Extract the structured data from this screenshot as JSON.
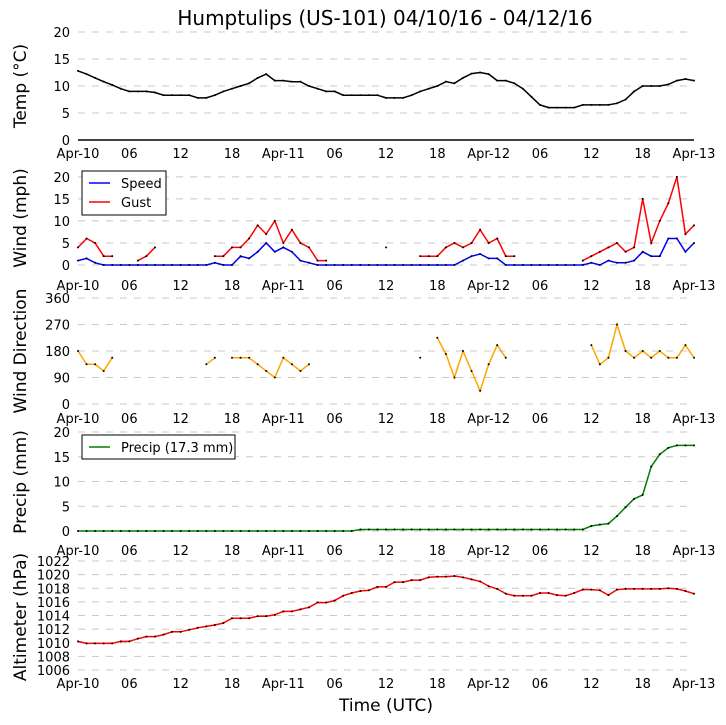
{
  "title": "Humptulips (US-101) 04/10/16 - 04/12/16",
  "xlabel": "Time (UTC)",
  "x_tick_labels": [
    "Apr-10",
    "06",
    "12",
    "18",
    "Apr-11",
    "06",
    "12",
    "18",
    "Apr-12",
    "06",
    "12",
    "18",
    "Apr-13"
  ],
  "x_range": [
    "2016-04-10T00:00",
    "2016-04-13T00:00"
  ],
  "chart_data": [
    {
      "type": "line",
      "ylabel": "Temp ($^\\circ$C)",
      "ylabel_display": "Temp (°C)",
      "ylim": [
        0,
        20
      ],
      "yticks": [
        "0",
        "5",
        "10",
        "15",
        "20"
      ],
      "grid": true,
      "series": [
        {
          "color": "#000000",
          "values": [
            12.8,
            12.2,
            11.5,
            10.8,
            10.2,
            9.5,
            9,
            9,
            9,
            8.8,
            8.3,
            8.3,
            8.3,
            8.3,
            7.8,
            7.8,
            8.3,
            9,
            9.5,
            10,
            10.5,
            11.5,
            12.2,
            11,
            11,
            10.8,
            10.8,
            10,
            9.5,
            9,
            9,
            8.3,
            8.3,
            8.3,
            8.3,
            8.3,
            7.8,
            7.8,
            7.8,
            8.3,
            9,
            9.5,
            10,
            10.8,
            10.5,
            11.5,
            12.3,
            12.5,
            12.2,
            11,
            11,
            10.5,
            9.5,
            8,
            6.5,
            6,
            6,
            6,
            6,
            6.5,
            6.5,
            6.5,
            6.5,
            6.8,
            7.5,
            9,
            10,
            10,
            10,
            10.3,
            11,
            11.3,
            11
          ]
        }
      ]
    },
    {
      "type": "line",
      "ylabel": "Wind (mph)",
      "ylim": [
        0,
        22
      ],
      "yticks": [
        "0",
        "5",
        "10",
        "15",
        "20"
      ],
      "grid": true,
      "legend": "top-left",
      "series": [
        {
          "name": "Speed",
          "color": "#0000ff",
          "values": [
            1,
            1.5,
            0.5,
            0,
            0,
            0,
            0,
            0,
            0,
            0,
            0,
            0,
            0,
            0,
            0,
            0,
            0.5,
            0,
            0,
            2,
            1.5,
            3,
            5,
            3,
            4,
            3,
            1,
            0.5,
            0,
            0,
            0,
            0,
            0,
            0,
            0,
            0,
            0,
            0,
            0,
            0,
            0,
            0,
            0,
            0,
            0,
            1,
            2,
            2.5,
            1.5,
            1.5,
            0,
            0,
            0,
            0,
            0,
            0,
            0,
            0,
            0,
            0,
            0.5,
            0,
            1,
            0.5,
            0.5,
            1,
            3,
            2,
            2,
            6,
            6,
            3,
            5
          ]
        },
        {
          "name": "Gust",
          "color": "#ff0000",
          "values": [
            4,
            6,
            5,
            2,
            2,
            null,
            null,
            1,
            2,
            4,
            null,
            null,
            null,
            null,
            null,
            null,
            2,
            2,
            4,
            4,
            6,
            9,
            7,
            10,
            5,
            8,
            5,
            4,
            1,
            1,
            null,
            null,
            null,
            null,
            null,
            null,
            4,
            null,
            null,
            null,
            2,
            2,
            2,
            4,
            5,
            4,
            5,
            8,
            5,
            6,
            2,
            2,
            null,
            null,
            null,
            null,
            null,
            null,
            null,
            1,
            2,
            3,
            4,
            5,
            3,
            4,
            15,
            5,
            10,
            14,
            20,
            7,
            9
          ]
        }
      ]
    },
    {
      "type": "line",
      "ylabel": "Wind Direction",
      "ylim": [
        0,
        360
      ],
      "yticks": [
        "0",
        "90",
        "180",
        "270",
        "360"
      ],
      "grid": true,
      "series": [
        {
          "color": "#ffa500",
          "values": [
            180,
            135,
            135,
            112,
            157,
            null,
            null,
            null,
            null,
            null,
            null,
            null,
            null,
            null,
            null,
            135,
            157,
            null,
            157,
            157,
            157,
            135,
            112,
            90,
            157,
            135,
            112,
            135,
            null,
            null,
            null,
            null,
            null,
            null,
            null,
            null,
            null,
            null,
            null,
            null,
            157,
            null,
            225,
            170,
            90,
            180,
            112,
            45,
            135,
            200,
            157,
            null,
            null,
            null,
            null,
            null,
            null,
            null,
            null,
            null,
            200,
            135,
            157,
            270,
            180,
            157,
            180,
            157,
            180,
            157,
            157,
            200,
            157
          ]
        }
      ]
    },
    {
      "type": "line",
      "ylabel": "Precip (mm)",
      "ylim": [
        0,
        20
      ],
      "yticks": [
        "0",
        "5",
        "10",
        "15",
        "20"
      ],
      "grid": true,
      "legend": "top-left",
      "series": [
        {
          "name": "Precip (17.3 mm)",
          "color": "#008000",
          "values": [
            0,
            0,
            0,
            0,
            0,
            0,
            0,
            0,
            0,
            0,
            0,
            0,
            0,
            0,
            0,
            0,
            0,
            0,
            0,
            0,
            0,
            0,
            0,
            0,
            0,
            0,
            0,
            0,
            0,
            0,
            0,
            0,
            0,
            0.3,
            0.3,
            0.3,
            0.3,
            0.3,
            0.3,
            0.3,
            0.3,
            0.3,
            0.3,
            0.3,
            0.3,
            0.3,
            0.3,
            0.3,
            0.3,
            0.3,
            0.3,
            0.3,
            0.3,
            0.3,
            0.3,
            0.3,
            0.3,
            0.3,
            0.3,
            0.3,
            1,
            1.3,
            1.5,
            3,
            4.8,
            6.5,
            7.3,
            13,
            15.5,
            16.8,
            17.3,
            17.3,
            17.3
          ]
        }
      ]
    },
    {
      "type": "line",
      "ylabel": "Altimeter (hPa)",
      "ylim": [
        1006,
        1022
      ],
      "yticks": [
        "1006",
        "1008",
        "1010",
        "1012",
        "1014",
        "1016",
        "1018",
        "1020",
        "1022"
      ],
      "grid": true,
      "series": [
        {
          "color": "#ff0000",
          "values": [
            1010.2,
            1009.9,
            1009.9,
            1009.9,
            1009.9,
            1010.2,
            1010.2,
            1010.6,
            1010.9,
            1010.9,
            1011.2,
            1011.6,
            1011.6,
            1011.9,
            1012.2,
            1012.4,
            1012.6,
            1012.9,
            1013.6,
            1013.6,
            1013.6,
            1013.9,
            1013.9,
            1014.1,
            1014.6,
            1014.6,
            1014.9,
            1015.2,
            1015.9,
            1015.9,
            1016.2,
            1016.9,
            1017.3,
            1017.6,
            1017.7,
            1018.2,
            1018.2,
            1018.9,
            1018.9,
            1019.2,
            1019.2,
            1019.6,
            1019.7,
            1019.7,
            1019.8,
            1019.6,
            1019.3,
            1019.0,
            1018.3,
            1017.9,
            1017.2,
            1016.9,
            1016.9,
            1016.9,
            1017.3,
            1017.3,
            1017.0,
            1016.9,
            1017.3,
            1017.8,
            1017.8,
            1017.7,
            1017.0,
            1017.8,
            1017.9,
            1017.9,
            1017.9,
            1017.9,
            1017.9,
            1018.0,
            1017.9,
            1017.6,
            1017.2
          ]
        }
      ]
    }
  ]
}
